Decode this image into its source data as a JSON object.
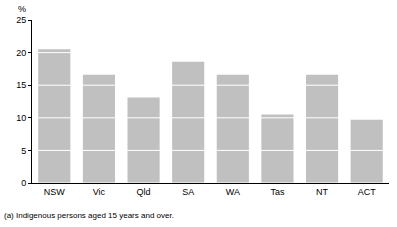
{
  "chart_data": {
    "type": "bar",
    "y_label": "%",
    "footnote": "(a) Indigenous persons aged 15 years and over.",
    "categories": [
      "NSW",
      "Vic",
      "Qld",
      "SA",
      "WA",
      "Tas",
      "NT",
      "ACT"
    ],
    "values": [
      20.5,
      16.6,
      13.1,
      18.6,
      16.6,
      10.5,
      16.6,
      9.7
    ],
    "color": "#c0c0c0",
    "ylim": [
      0,
      25
    ],
    "yticks": [
      0,
      5,
      10,
      15,
      20,
      25
    ],
    "grid": true
  }
}
